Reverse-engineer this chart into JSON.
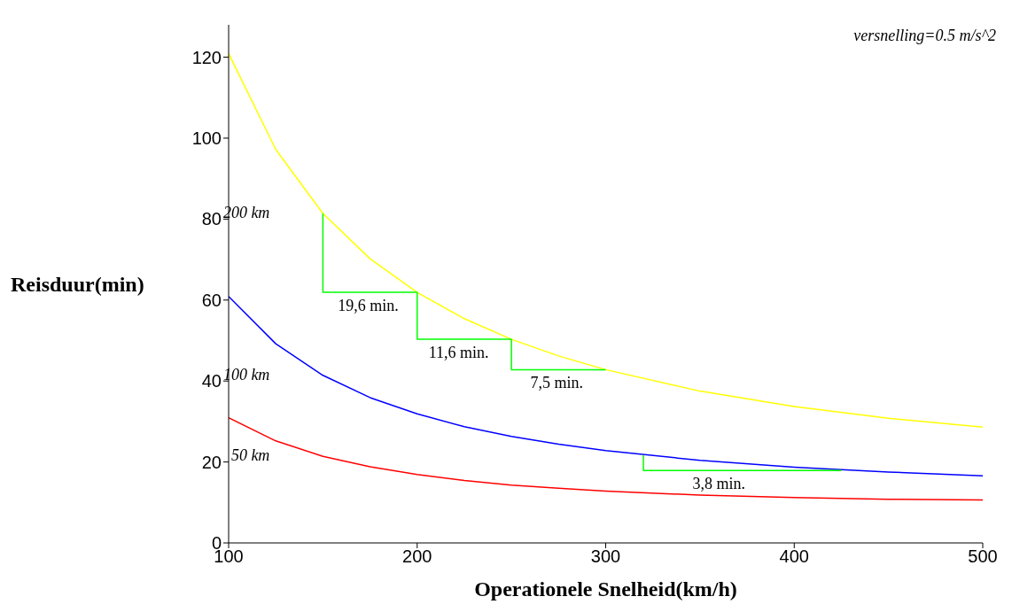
{
  "chart_data": {
    "type": "line",
    "xlabel": "Operationele Snelheid(km/h)",
    "ylabel": "Reisduur(min)",
    "xlim": [
      100,
      500
    ],
    "xticks": [
      100,
      200,
      300,
      400,
      500
    ],
    "ylim": [
      0,
      128
    ],
    "yticks": [
      0,
      20,
      40,
      60,
      80,
      100,
      120
    ],
    "grid": false,
    "legend": false,
    "marker": "none",
    "series": [
      {
        "name": "200 km",
        "color": "#ffff00",
        "x": [
          100,
          125,
          150,
          175,
          200,
          225,
          250,
          275,
          300,
          350,
          400,
          450,
          500
        ],
        "values": [
          120.9,
          97.2,
          81.4,
          70.2,
          61.9,
          55.4,
          50.3,
          46.2,
          42.8,
          37.5,
          33.7,
          30.8,
          28.6
        ]
      },
      {
        "name": "100 km",
        "color": "#0000ff",
        "x": [
          100,
          125,
          150,
          175,
          200,
          225,
          250,
          275,
          300,
          350,
          400,
          450,
          500
        ],
        "values": [
          60.9,
          49.2,
          41.4,
          35.9,
          31.9,
          28.7,
          26.3,
          24.4,
          22.8,
          20.4,
          18.7,
          17.5,
          16.6
        ]
      },
      {
        "name": "50 km",
        "color": "#ff0000",
        "x": [
          100,
          125,
          150,
          175,
          200,
          225,
          250,
          275,
          300,
          350,
          400,
          450,
          500
        ],
        "values": [
          30.9,
          25.2,
          21.4,
          18.8,
          16.9,
          15.4,
          14.3,
          13.5,
          12.8,
          11.8,
          11.2,
          10.8,
          10.6
        ]
      },
      {
        "color": "#00ff00",
        "x": [
          150,
          150,
          200
        ],
        "values": [
          81.4,
          61.9,
          61.9
        ]
      },
      {
        "color": "#00ff00",
        "x": [
          200,
          200,
          250
        ],
        "values": [
          61.9,
          50.3,
          50.3
        ]
      },
      {
        "color": "#00ff00",
        "x": [
          250,
          250,
          300
        ],
        "values": [
          50.3,
          42.8,
          42.8
        ]
      },
      {
        "color": "#00ff00",
        "x": [
          320,
          320,
          425
        ],
        "values": [
          21.7,
          17.9,
          17.9
        ]
      }
    ],
    "annotations": [
      "versnelling=0.5 m/s^2",
      {
        "text": "19,6 min.",
        "x": 174,
        "y": 61.9
      },
      {
        "text": "11,6 min.",
        "x": 222,
        "y": 50.3
      },
      {
        "text": "7,5 min.",
        "x": 274,
        "y": 42.8
      },
      {
        "text": "3,8 min.",
        "x": 360,
        "y": 17.9
      }
    ]
  }
}
